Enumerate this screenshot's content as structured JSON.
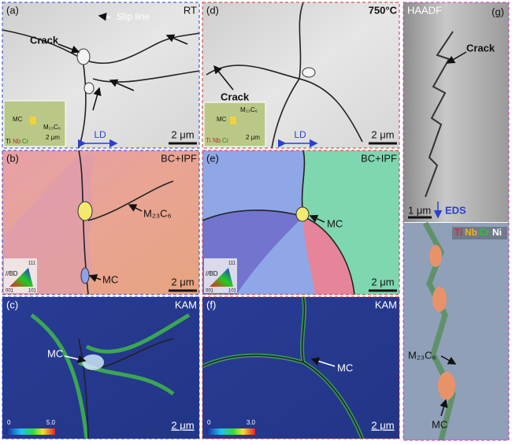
{
  "panel_a": {
    "label": "(a)",
    "condition": "RT",
    "slip_line": "Slip line",
    "crack": "Crack",
    "scale_bar": "2 μm",
    "loading_direction": "LD",
    "inset": {
      "phase_1": "MC",
      "phase_2": "M₂₃C₆",
      "scale_bar": "2 μm",
      "elements": [
        "Ti",
        "Nb",
        "Cr"
      ]
    }
  },
  "panel_b": {
    "label": "(b)",
    "mode": "BC+IPF",
    "phase_1": "M₂₃C₆",
    "phase_2": "MC",
    "scale_bar": "2 μm",
    "ipf_key": {
      "direction": "//BD",
      "corners": [
        "111",
        "001",
        "101"
      ]
    }
  },
  "panel_c": {
    "label": "(c)",
    "mode": "KAM",
    "phase": "MC",
    "scale_bar": "2 μm",
    "colorbar": {
      "min": "0",
      "max": "5.0"
    }
  },
  "panel_d": {
    "label": "(d)",
    "condition": "750°C",
    "crack": "Crack",
    "scale_bar": "2 μm",
    "loading_direction": "LD",
    "inset": {
      "phase_1": "MC",
      "phase_2": "M₂₃C₆",
      "scale_bar": "2 μm",
      "elements": [
        "Ti",
        "Nb",
        "Cr"
      ]
    }
  },
  "panel_e": {
    "label": "(e)",
    "mode": "BC+IPF",
    "phase": "MC",
    "scale_bar": "2 μm",
    "ipf_key": {
      "direction": "//BD",
      "corners": [
        "111",
        "001",
        "101"
      ]
    }
  },
  "panel_f": {
    "label": "(f)",
    "mode": "KAM",
    "phase": "MC",
    "scale_bar": "2 μm",
    "colorbar": {
      "min": "0",
      "max": "3.0"
    }
  },
  "panel_g": {
    "label": "(g)",
    "mode": "HAADF",
    "crack": "Crack",
    "scale_bar": "1 μm",
    "eds": "EDS",
    "elements": [
      "Ti",
      "Nb",
      "Cr",
      "Ni"
    ],
    "phase_1": "M₂₃C₆",
    "phase_2": "MC"
  }
}
